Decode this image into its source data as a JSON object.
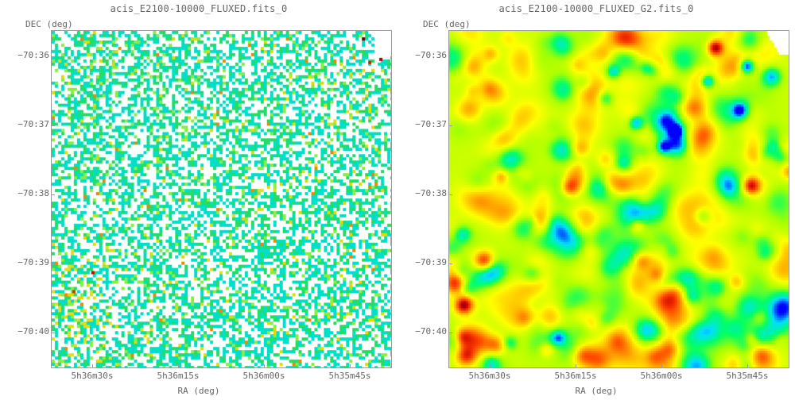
{
  "panels": [
    {
      "title": "acis_E2100-10000_FLUXED.fits_0",
      "y_axis_label": "DEC (deg)",
      "x_axis_label": "RA (deg)",
      "y_ticks": [
        "−70:36",
        "−70:37",
        "−70:38",
        "−70:39",
        "−70:40"
      ],
      "x_ticks": [
        "5h36m30s",
        "5h36m15s",
        "5h36m00s",
        "5h35m45s"
      ],
      "image_style": "sparse-pixel-counts"
    },
    {
      "title": "acis_E2100-10000_FLUXED_G2.fits_0",
      "y_axis_label": "DEC (deg)",
      "x_axis_label": "RA (deg)",
      "y_ticks": [
        "−70:36",
        "−70:37",
        "−70:38",
        "−70:39",
        "−70:40"
      ],
      "x_ticks": [
        "5h36m30s",
        "5h36m15s",
        "5h36m00s",
        "5h35m45s"
      ],
      "image_style": "gaussian-smoothed"
    }
  ],
  "colors": {
    "axis": "#9a9a9a",
    "text": "#666666",
    "colormap": [
      "#0000ff",
      "#00e0ff",
      "#00ff66",
      "#aaff00",
      "#ffff00",
      "#ffaa00",
      "#ff4400",
      "#cc0000",
      "#330000"
    ]
  }
}
